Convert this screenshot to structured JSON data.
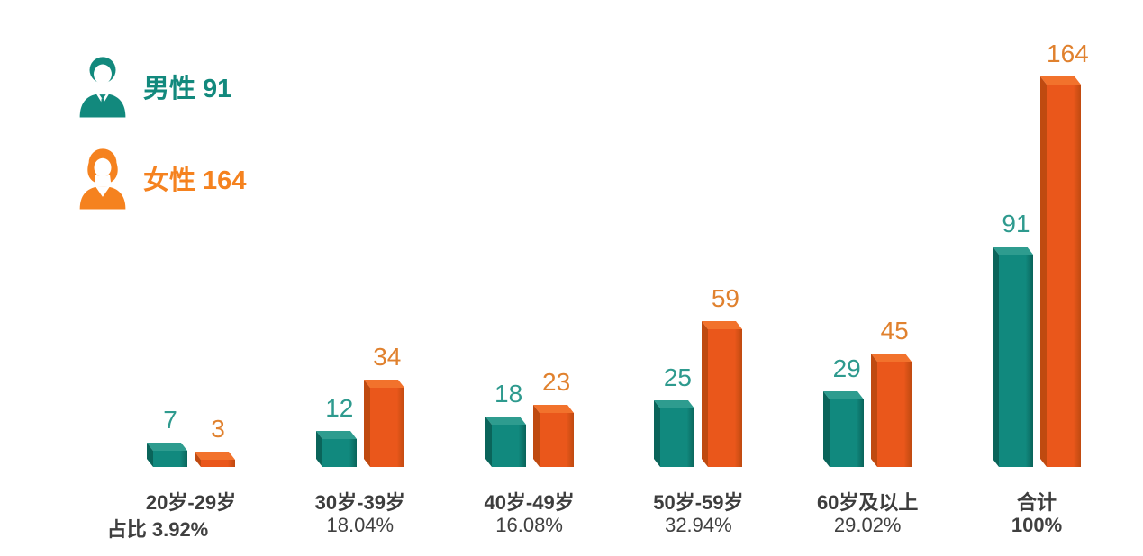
{
  "legend": {
    "male_label": "男性 91",
    "female_label": "女性 164"
  },
  "colors": {
    "male_teal": "#11897e",
    "male_teal_top": "#2e9c8f",
    "male_teal_side": "#0a645a",
    "male_label_color": "#2e9a8e",
    "female_orange": "#ea571b",
    "female_orange_top": "#f2722c",
    "female_orange_side": "#bf4a10",
    "female_label_color": "#e0812e",
    "axis_text": "#3d3d3d"
  },
  "chart_data": {
    "type": "bar",
    "title": "",
    "categories": [
      "20岁-29岁",
      "30岁-39岁",
      "40岁-49岁",
      "50岁-59岁",
      "60岁及以上",
      "合计"
    ],
    "percent_labels": [
      "占比 3.92%",
      "18.04%",
      "16.08%",
      "32.94%",
      "29.02%",
      "100%"
    ],
    "percent_bold": [
      true,
      false,
      false,
      false,
      false,
      true
    ],
    "series": [
      {
        "name": "男性",
        "values": [
          7,
          12,
          18,
          25,
          29,
          91
        ],
        "color": "#11897e",
        "color_top": "#2e9c8f",
        "color_side": "#0a645a",
        "label_color": "#2e9a8e"
      },
      {
        "name": "女性",
        "values": [
          3,
          34,
          23,
          59,
          45,
          164
        ],
        "color": "#ea571b",
        "color_top": "#f2722c",
        "color_side": "#bf4a10",
        "label_color": "#e0812e"
      }
    ],
    "ylim": [
      0,
      164
    ],
    "grid": false,
    "legend_position": "top-left",
    "bar_style": "3d-box",
    "value_labels_shown": true
  }
}
